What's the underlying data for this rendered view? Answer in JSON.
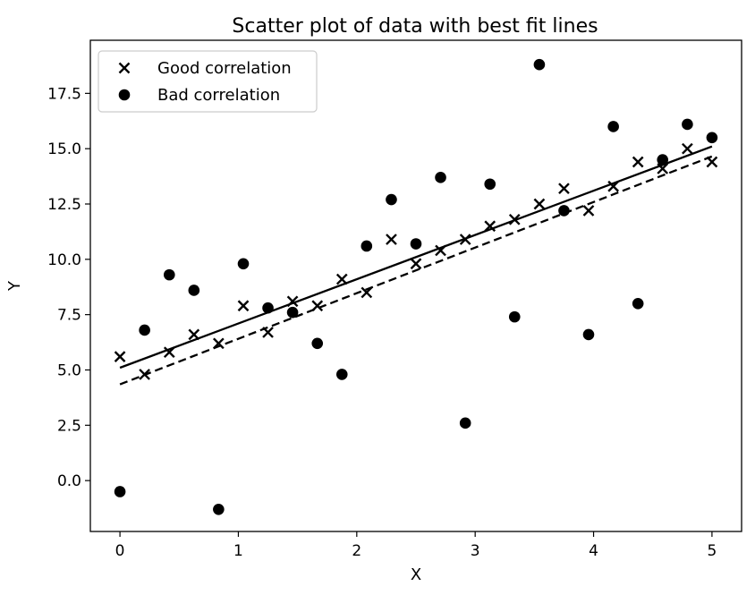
{
  "chart_data": {
    "type": "scatter",
    "title": "Scatter plot of data with best fit lines",
    "xlabel": "X",
    "ylabel": "Y",
    "xlim": [
      -0.25,
      5.25
    ],
    "ylim": [
      -2.3,
      19.9
    ],
    "xticks": [
      0,
      1,
      2,
      3,
      4,
      5
    ],
    "yticks": [
      0.0,
      2.5,
      5.0,
      7.5,
      10.0,
      12.5,
      15.0,
      17.5
    ],
    "xtick_labels": [
      "0",
      "1",
      "2",
      "3",
      "4",
      "5"
    ],
    "ytick_labels": [
      "0.0",
      "2.5",
      "5.0",
      "7.5",
      "10.0",
      "12.5",
      "15.0",
      "17.5"
    ],
    "grid": false,
    "legend_position": "top-left",
    "series": [
      {
        "name": "Good correlation",
        "marker": "x",
        "color": "#000000",
        "x": [
          0.0,
          0.208,
          0.417,
          0.625,
          0.833,
          1.042,
          1.25,
          1.458,
          1.667,
          1.875,
          2.083,
          2.292,
          2.5,
          2.708,
          2.917,
          3.125,
          3.333,
          3.542,
          3.75,
          3.958,
          4.167,
          4.375,
          4.583,
          4.792,
          5.0
        ],
        "y": [
          5.6,
          4.8,
          5.8,
          6.6,
          6.2,
          7.9,
          6.7,
          8.1,
          7.9,
          9.1,
          8.5,
          10.9,
          9.8,
          10.4,
          10.9,
          11.5,
          11.8,
          12.5,
          13.2,
          12.2,
          13.3,
          14.4,
          14.1,
          15.0,
          14.4
        ]
      },
      {
        "name": "Bad correlation",
        "marker": "o",
        "color": "#000000",
        "x": [
          0.0,
          0.208,
          0.417,
          0.625,
          0.833,
          1.042,
          1.25,
          1.458,
          1.667,
          1.875,
          2.083,
          2.292,
          2.5,
          2.708,
          2.917,
          3.125,
          3.333,
          3.542,
          3.75,
          3.958,
          4.167,
          4.375,
          4.583,
          4.792,
          5.0
        ],
        "y": [
          -0.5,
          6.8,
          9.3,
          8.6,
          -1.3,
          9.8,
          7.8,
          7.6,
          6.2,
          4.8,
          10.6,
          12.7,
          10.7,
          13.7,
          2.6,
          13.4,
          7.4,
          18.8,
          12.2,
          6.6,
          16.0,
          8.0,
          14.5,
          16.1,
          15.5
        ]
      }
    ],
    "fit_lines": [
      {
        "of_series": "Good correlation",
        "style": "solid",
        "x": [
          0,
          5
        ],
        "y": [
          5.1,
          15.1
        ]
      },
      {
        "of_series": "Bad correlation",
        "style": "dashed",
        "x": [
          0,
          5
        ],
        "y": [
          4.35,
          14.65
        ]
      }
    ]
  }
}
